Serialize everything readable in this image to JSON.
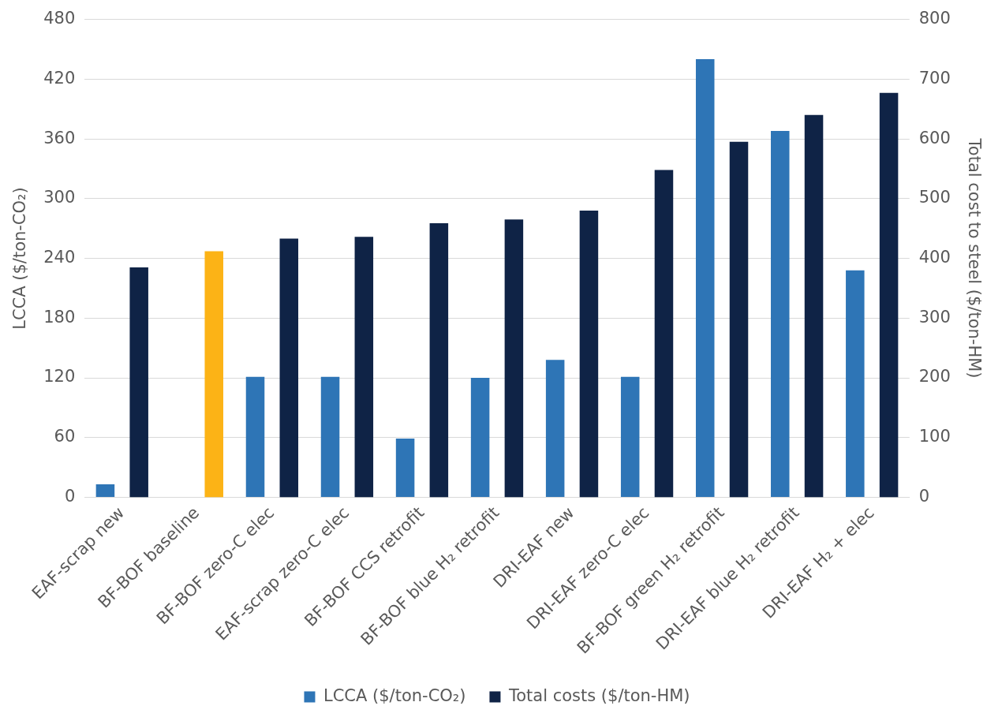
{
  "chart_data": {
    "type": "bar",
    "categories": [
      "EAF-scrap new",
      "BF-BOF baseline",
      "BF-BOF zero-C elec",
      "EAF-scrap zero-C elec",
      "BF-BOF CCS retrofit",
      "BF-BOF blue H₂ retrofit",
      "DRI-EAF new",
      "DRI-EAF zero-C elec",
      "BF-BOF green H₂ retrofit",
      "DRI-EAF blue H₂ retrofit",
      "DRI-EAF H₂ + elec"
    ],
    "series": [
      {
        "name": "LCCA ($/ton-CO₂)",
        "color": "#2e75b6",
        "axis": "y",
        "values": [
          13,
          null,
          121,
          121,
          59,
          120,
          138,
          121,
          440,
          368,
          228
        ]
      },
      {
        "name": "Total costs ($/ton-HM)",
        "color": "#0f2346",
        "colors": [
          "#0f2346",
          "#fcb316",
          "#0f2346",
          "#0f2346",
          "#0f2346",
          "#0f2346",
          "#0f2346",
          "#0f2346",
          "#0f2346",
          "#0f2346",
          "#0f2346"
        ],
        "axis": "y2",
        "values": [
          385,
          412,
          433,
          436,
          459,
          465,
          480,
          548,
          595,
          640,
          677
        ]
      }
    ],
    "ylabel": "LCCA ($/ton-CO₂)",
    "y2label": "Total cost to steel ($/ton-HM)",
    "ylim": [
      0,
      480
    ],
    "yticks": [
      0,
      60,
      120,
      180,
      240,
      300,
      360,
      420,
      480
    ],
    "y2lim": [
      0,
      800
    ],
    "y2ticks": [
      0,
      100,
      200,
      300,
      400,
      500,
      600,
      700,
      800
    ],
    "grid": "y",
    "legend": "bottom"
  }
}
